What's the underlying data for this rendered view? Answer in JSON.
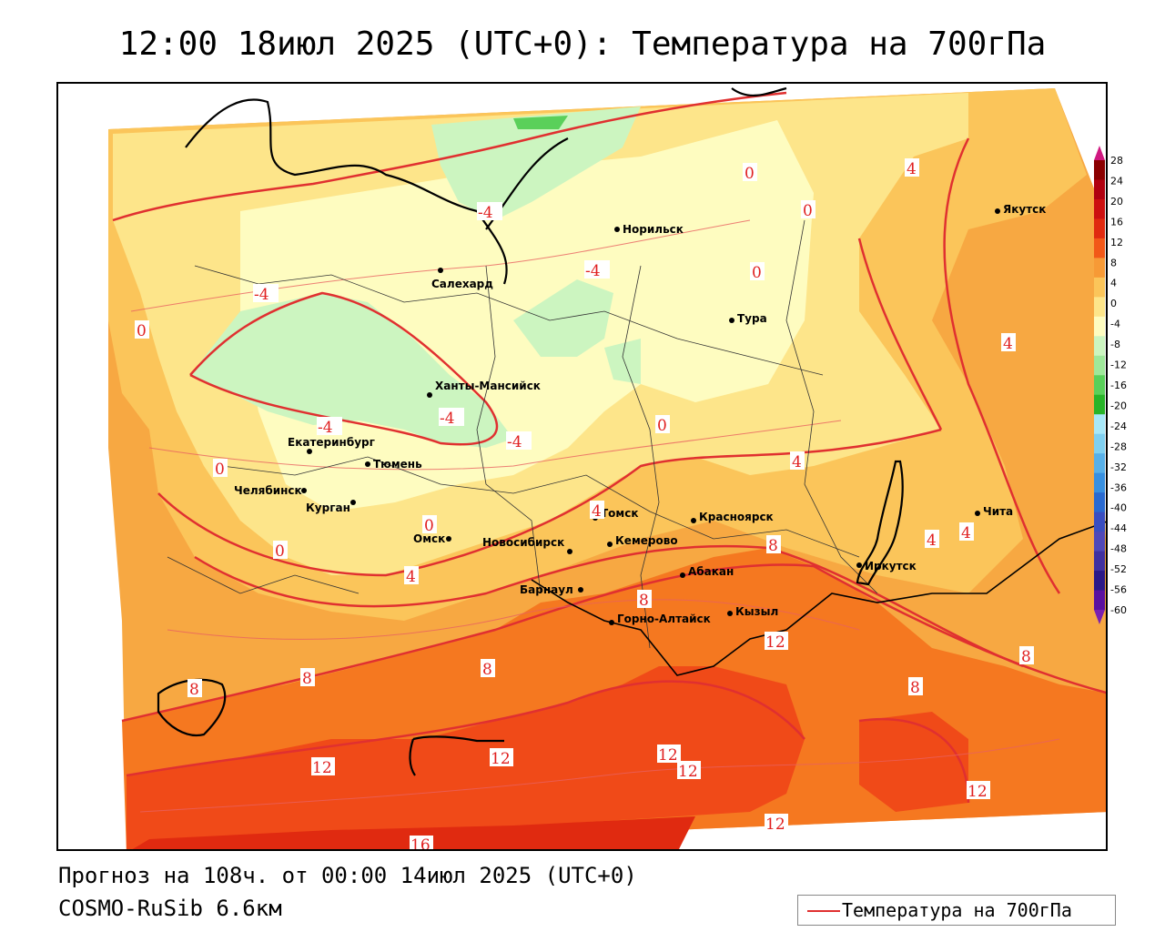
{
  "title": "12:00 18июл 2025 (UTC+0): Температура на 700гПа",
  "forecast_line": "Прогноз на 108ч. от 00:00 14июл 2025 (UTC+0)",
  "model_line": "COSMO-RuSib 6.6км",
  "legend": {
    "label": "Температура на 700гПа",
    "line_color": "#e03030"
  },
  "colorbar": {
    "ticks": [
      "28",
      "24",
      "20",
      "16",
      "12",
      "8",
      "4",
      "0",
      "-4",
      "-8",
      "-12",
      "-16",
      "-20",
      "-24",
      "-28",
      "-32",
      "-36",
      "-40",
      "-44",
      "-48",
      "-52",
      "-56",
      "-60"
    ],
    "colors": [
      "#8b0000",
      "#b00010",
      "#cc1010",
      "#e02a10",
      "#f25818",
      "#f79a36",
      "#fbc55a",
      "#fde58a",
      "#fefcc0",
      "#ccf5c0",
      "#9fe89a",
      "#5ad05a",
      "#28b428",
      "#a8e8f8",
      "#80d0f0",
      "#58b0e8",
      "#3890e0",
      "#2a6ad0",
      "#3a4ec0",
      "#5048b8",
      "#4030a0",
      "#2a1888",
      "#5a10a0"
    ]
  },
  "cities": [
    {
      "name": "Норильск"
    },
    {
      "name": "Якутск"
    },
    {
      "name": "Салехард"
    },
    {
      "name": "Тура"
    },
    {
      "name": "Ханты-Мансийск"
    },
    {
      "name": "Екатеринбург"
    },
    {
      "name": "Тюмень"
    },
    {
      "name": "Челябинск"
    },
    {
      "name": "Курган"
    },
    {
      "name": "Омск"
    },
    {
      "name": "Новосибирск"
    },
    {
      "name": "Томск"
    },
    {
      "name": "Кемерово"
    },
    {
      "name": "Красноярск"
    },
    {
      "name": "Барнаул"
    },
    {
      "name": "Абакан"
    },
    {
      "name": "Горно-Алтайск"
    },
    {
      "name": "Кызыл"
    },
    {
      "name": "Иркутск"
    },
    {
      "name": "Чита"
    }
  ],
  "isotherm_labels": [
    "-4",
    "-4",
    "-4",
    "-4",
    "-4",
    "-4",
    "0",
    "0",
    "0",
    "0",
    "0",
    "0",
    "0",
    "0",
    "4",
    "4",
    "4",
    "4",
    "4",
    "4",
    "4",
    "8",
    "8",
    "8",
    "8",
    "8",
    "8",
    "8",
    "12",
    "12",
    "12",
    "12",
    "12",
    "12",
    "12",
    "16"
  ]
}
